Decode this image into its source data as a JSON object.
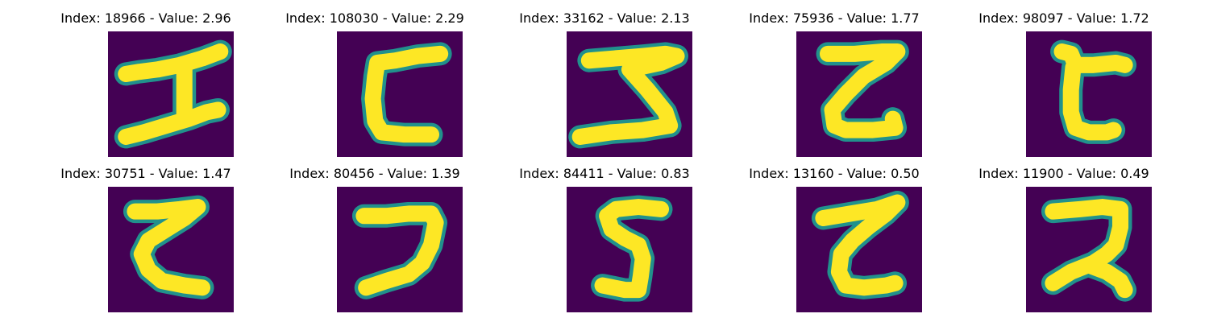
{
  "panels": [
    {
      "title": "Index: 18966 - Value: 2.96",
      "index": 18966,
      "value": 2.96
    },
    {
      "title": "Index: 108030 - Value: 2.29",
      "index": 108030,
      "value": 2.29
    },
    {
      "title": "Index: 33162 - Value: 2.13",
      "index": 33162,
      "value": 2.13
    },
    {
      "title": "Index: 75936 - Value: 1.77",
      "index": 75936,
      "value": 1.77
    },
    {
      "title": "Index: 98097 - Value: 1.72",
      "index": 98097,
      "value": 1.72
    },
    {
      "title": "Index: 30751 - Value: 1.47",
      "index": 30751,
      "value": 1.47
    },
    {
      "title": "Index: 80456 - Value: 1.39",
      "index": 80456,
      "value": 1.39
    },
    {
      "title": "Index: 84411 - Value: 0.83",
      "index": 84411,
      "value": 0.83
    },
    {
      "title": "Index: 13160 - Value: 0.50",
      "index": 13160,
      "value": 0.5
    },
    {
      "title": "Index: 11900 - Value: 0.49",
      "index": 11900,
      "value": 0.49
    }
  ],
  "colormap": {
    "background": "#440154",
    "edge": "#21918c",
    "foreground": "#fde725"
  }
}
